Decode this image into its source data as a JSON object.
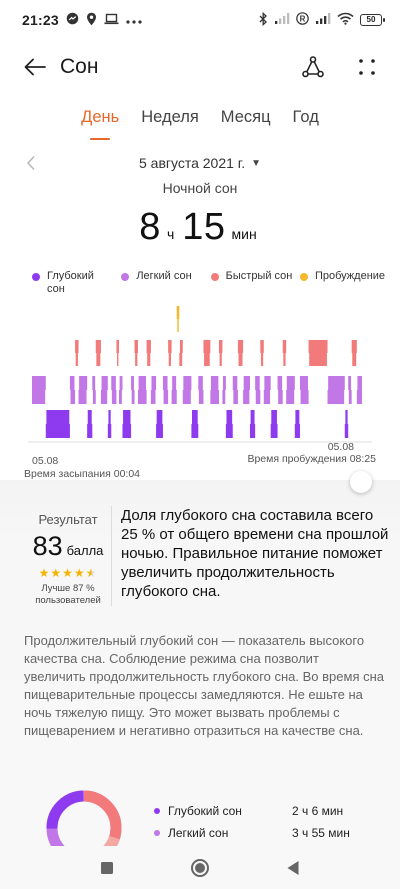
{
  "status_bar": {
    "time": "21:23",
    "battery": "50"
  },
  "header": {
    "title": "Сон"
  },
  "tabs": [
    {
      "label": "День",
      "active": true
    },
    {
      "label": "Неделя",
      "active": false
    },
    {
      "label": "Месяц",
      "active": false
    },
    {
      "label": "Год",
      "active": false
    }
  ],
  "date": {
    "label": "5 августа 2021 г."
  },
  "sleep_type": "Ночной сон",
  "duration": {
    "hours": "8",
    "hours_unit": "ч",
    "minutes": "15",
    "minutes_unit": "мин"
  },
  "legend": [
    {
      "label": "Глубокий сон",
      "color": "#8e3bf0"
    },
    {
      "label": "Легкий сон",
      "color": "#c177e6"
    },
    {
      "label": "Быстрый сон",
      "color": "#f37a7a"
    },
    {
      "label": "Пробуждение",
      "color": "#f5b82e"
    }
  ],
  "chart": {
    "start_date": "05.08",
    "start_label": "Время засыпания 00:04",
    "end_date": "05.08",
    "end_label": "Время пробуждения 08:25"
  },
  "colors": {
    "accent": "#e8672a",
    "deep": "#8e3bf0",
    "light": "#c177e6",
    "rem": "#f37a7a",
    "awake": "#f5b82e"
  },
  "result": {
    "label": "Результат",
    "score": "83",
    "score_unit": "балла",
    "stars": 4.5,
    "better_than": "Лучше 87 % пользователей",
    "summary": "Доля глубокого сна составила всего 25 % от общего времени сна прошлой ночью. Правильное питание поможет увеличить продолжительность глубокого сна."
  },
  "advice": "Продолжительный глубокий сон — показатель высокого качества сна. Соблюдение режима сна позволит увеличить продолжительность глубокого сна. Во время сна пищеварительные процессы замедляются. Не ешьте на ночь тяжелую пищу. Это может вызвать проблемы с пищеварением и негативно отразиться на качестве сна.",
  "stats": [
    {
      "label": "Глубокий сон",
      "value": "2 ч 6 мин",
      "color": "#8e3bf0"
    },
    {
      "label": "Легкий сон",
      "value": "3 ч 55 мин",
      "color": "#c177e6"
    }
  ]
}
